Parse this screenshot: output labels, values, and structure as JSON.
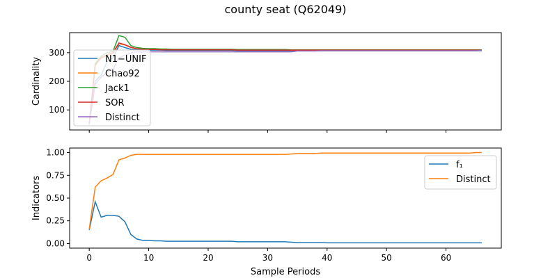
{
  "figure": {
    "title": "county seat (Q62049)"
  },
  "chart_data": [
    {
      "type": "line",
      "ylabel": "Cardinality",
      "xlabel": "",
      "xlim": [
        -3.3,
        69.3
      ],
      "ylim": [
        30,
        370
      ],
      "xticks": [
        0,
        10,
        20,
        30,
        40,
        50,
        60
      ],
      "yticks": [
        100,
        200,
        300
      ],
      "tick_labels_x_visible": false,
      "legend_position": "center-left",
      "x": [
        0,
        1,
        2,
        3,
        4,
        5,
        6,
        7,
        8,
        9,
        10,
        11,
        12,
        13,
        14,
        15,
        16,
        17,
        18,
        19,
        20,
        21,
        22,
        23,
        24,
        25,
        26,
        27,
        28,
        29,
        30,
        31,
        32,
        33,
        34,
        35,
        36,
        37,
        38,
        39,
        40,
        41,
        42,
        43,
        44,
        45,
        46,
        47,
        48,
        49,
        50,
        51,
        52,
        53,
        54,
        55,
        56,
        57,
        58,
        59,
        60,
        61,
        62,
        63,
        64,
        65,
        66
      ],
      "series": [
        {
          "name": "N1−UNIF",
          "color": "#1f77b4",
          "values": [
            50,
            200,
            222,
            268,
            283,
            325,
            318,
            312,
            310,
            310,
            309,
            309,
            309,
            308,
            308,
            308,
            308,
            308,
            308,
            308,
            308,
            308,
            308,
            308,
            308,
            307,
            307,
            307,
            307,
            307,
            307,
            307,
            307,
            307,
            307,
            307,
            307,
            307,
            307,
            307,
            307,
            307,
            307,
            307,
            307,
            307,
            307,
            307,
            307,
            307,
            307,
            307,
            307,
            307,
            307,
            307,
            307,
            307,
            307,
            307,
            307,
            307,
            307,
            307,
            307,
            307,
            307
          ]
        },
        {
          "name": "Chao92",
          "color": "#ff7f0e",
          "values": [
            50,
            258,
            281,
            290,
            298,
            332,
            327,
            318,
            314,
            312,
            312,
            312,
            311,
            311,
            311,
            311,
            311,
            311,
            311,
            311,
            311,
            311,
            311,
            311,
            311,
            310,
            310,
            310,
            310,
            310,
            310,
            310,
            310,
            310,
            309,
            309,
            309,
            309,
            309,
            309,
            309,
            309,
            309,
            309,
            309,
            309,
            309,
            309,
            309,
            309,
            309,
            309,
            309,
            309,
            309,
            309,
            309,
            309,
            309,
            309,
            309,
            309,
            309,
            309,
            309,
            309,
            309
          ]
        },
        {
          "name": "Jack1",
          "color": "#2ca02c",
          "values": [
            50,
            262,
            288,
            300,
            305,
            360,
            354,
            325,
            318,
            315,
            314,
            314,
            313,
            313,
            312,
            312,
            312,
            312,
            312,
            312,
            312,
            312,
            312,
            312,
            312,
            311,
            311,
            311,
            311,
            311,
            311,
            311,
            311,
            311,
            310,
            310,
            310,
            310,
            310,
            310,
            310,
            310,
            310,
            310,
            310,
            310,
            310,
            310,
            310,
            310,
            310,
            310,
            310,
            310,
            310,
            310,
            310,
            310,
            310,
            310,
            310,
            310,
            310,
            310,
            310,
            310,
            310
          ]
        },
        {
          "name": "SOR",
          "color": "#d62728",
          "values": [
            50,
            255,
            283,
            293,
            300,
            334,
            328,
            319,
            314,
            312,
            311,
            311,
            310,
            310,
            310,
            310,
            310,
            310,
            310,
            310,
            310,
            310,
            310,
            310,
            310,
            309,
            309,
            309,
            309,
            309,
            309,
            309,
            309,
            309,
            309,
            309,
            309,
            309,
            309,
            309,
            309,
            309,
            309,
            309,
            309,
            309,
            309,
            309,
            309,
            309,
            309,
            309,
            309,
            309,
            309,
            309,
            309,
            309,
            309,
            309,
            309,
            309,
            309,
            309,
            309,
            309,
            309
          ]
        },
        {
          "name": "Distinct",
          "color": "#9467bd",
          "values": [
            50,
            190,
            214,
            233,
            242,
            283,
            291,
            299,
            303,
            303,
            303,
            303,
            303,
            303,
            303,
            303,
            303,
            303,
            303,
            303,
            303,
            303,
            303,
            303,
            303,
            303,
            303,
            303,
            303,
            303,
            303,
            303,
            303,
            303,
            303,
            306,
            306,
            306,
            306,
            307,
            307,
            307,
            307,
            307,
            307,
            307,
            307,
            307,
            307,
            307,
            307,
            307,
            307,
            307,
            307,
            307,
            307,
            307,
            307,
            307,
            307,
            307,
            307,
            307,
            307,
            307,
            308
          ]
        }
      ]
    },
    {
      "type": "line",
      "ylabel": "Indicators",
      "xlabel": "Sample Periods",
      "xlim": [
        -3.3,
        69.3
      ],
      "ylim": [
        -0.05,
        1.05
      ],
      "xticks": [
        0,
        10,
        20,
        30,
        40,
        50,
        60
      ],
      "yticks": [
        0.0,
        0.25,
        0.5,
        0.75,
        1.0
      ],
      "ytick_labels": [
        "0.00",
        "0.25",
        "0.50",
        "0.75",
        "1.00"
      ],
      "legend_position": "upper-right",
      "x": [
        0,
        1,
        2,
        3,
        4,
        5,
        6,
        7,
        8,
        9,
        10,
        11,
        12,
        13,
        14,
        15,
        16,
        17,
        18,
        19,
        20,
        21,
        22,
        23,
        24,
        25,
        26,
        27,
        28,
        29,
        30,
        31,
        32,
        33,
        34,
        35,
        36,
        37,
        38,
        39,
        40,
        41,
        42,
        43,
        44,
        45,
        46,
        47,
        48,
        49,
        50,
        51,
        52,
        53,
        54,
        55,
        56,
        57,
        58,
        59,
        60,
        61,
        62,
        63,
        64,
        65,
        66
      ],
      "series": [
        {
          "name": "f₁",
          "color": "#1f77b4",
          "values": [
            0.15,
            0.46,
            0.29,
            0.31,
            0.31,
            0.3,
            0.24,
            0.1,
            0.05,
            0.035,
            0.035,
            0.03,
            0.03,
            0.025,
            0.025,
            0.025,
            0.025,
            0.025,
            0.025,
            0.025,
            0.025,
            0.025,
            0.025,
            0.025,
            0.025,
            0.02,
            0.02,
            0.02,
            0.02,
            0.02,
            0.02,
            0.02,
            0.02,
            0.02,
            0.015,
            0.01,
            0.01,
            0.01,
            0.01,
            0.01,
            0.008,
            0.008,
            0.008,
            0.008,
            0.008,
            0.008,
            0.008,
            0.008,
            0.008,
            0.008,
            0.008,
            0.008,
            0.008,
            0.008,
            0.008,
            0.008,
            0.008,
            0.008,
            0.008,
            0.008,
            0.008,
            0.008,
            0.008,
            0.008,
            0.008,
            0.008,
            0.008
          ]
        },
        {
          "name": "Distinct",
          "color": "#ff7f0e",
          "values": [
            0.16,
            0.62,
            0.69,
            0.72,
            0.76,
            0.92,
            0.94,
            0.97,
            0.98,
            0.98,
            0.98,
            0.98,
            0.98,
            0.98,
            0.98,
            0.98,
            0.98,
            0.98,
            0.98,
            0.98,
            0.98,
            0.98,
            0.98,
            0.98,
            0.98,
            0.98,
            0.98,
            0.98,
            0.98,
            0.98,
            0.98,
            0.98,
            0.98,
            0.98,
            0.985,
            0.99,
            0.99,
            0.99,
            0.99,
            0.995,
            0.995,
            0.995,
            0.995,
            0.995,
            0.995,
            0.995,
            0.995,
            0.995,
            0.995,
            0.995,
            0.995,
            0.995,
            0.995,
            0.995,
            0.995,
            0.995,
            0.995,
            0.995,
            0.995,
            0.995,
            0.995,
            0.995,
            0.995,
            0.995,
            0.995,
            1.0,
            1.0
          ]
        }
      ]
    }
  ]
}
